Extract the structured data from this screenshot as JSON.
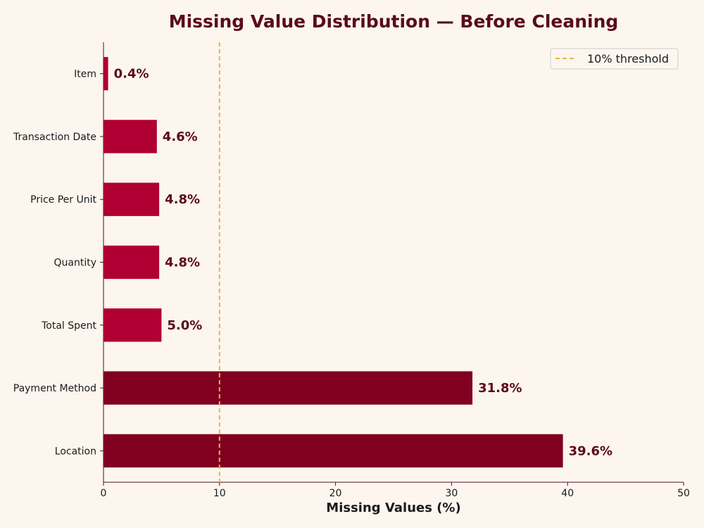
{
  "chart_data": {
    "type": "bar",
    "orientation": "horizontal",
    "title": "Missing Value Distribution — Before Cleaning",
    "xlabel": "Missing Values (%)",
    "ylabel": "",
    "xlim": [
      0,
      50
    ],
    "xticks": [
      0,
      10,
      20,
      30,
      40,
      50
    ],
    "categories": [
      "Item",
      "Transaction Date",
      "Price Per Unit",
      "Quantity",
      "Total Spent",
      "Payment Method",
      "Location"
    ],
    "values": [
      0.4,
      4.6,
      4.8,
      4.8,
      5.0,
      31.8,
      39.6
    ],
    "data_labels": [
      "0.4%",
      "4.6%",
      "4.8%",
      "4.8%",
      "5.0%",
      "31.8%",
      "39.6%"
    ],
    "bar_colors": [
      "#b00033",
      "#b00033",
      "#b00033",
      "#b00033",
      "#b00033",
      "#800020",
      "#800020"
    ],
    "threshold": {
      "value": 10,
      "label": "10% threshold",
      "color": "#e0b84a",
      "style": "dashed"
    },
    "legend_position": "top-right",
    "grid": false
  }
}
